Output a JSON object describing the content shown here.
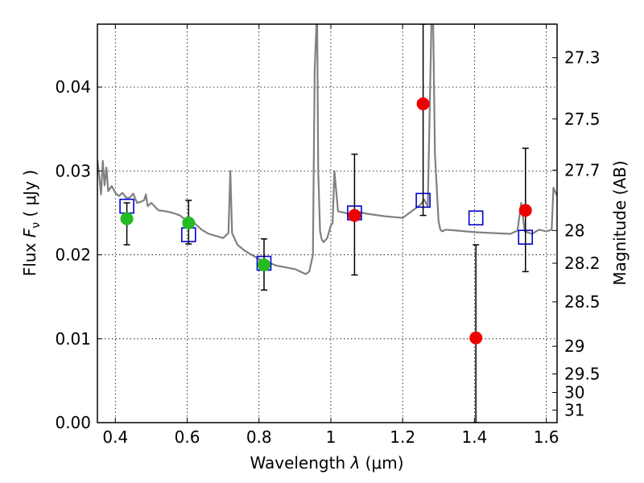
{
  "chart_data": {
    "type": "scatter",
    "title": "",
    "xlabel": "Wavelength  λ (μm)",
    "ylabel": "Flux  F_ν  ( μJy )",
    "ylabel_parts": {
      "prefix": "Flux  ",
      "symbol": "F",
      "sub": "ν",
      "suffix": "  ( μJy )"
    },
    "xlabel_parts": {
      "prefix": "Wavelength  ",
      "symbol": "λ",
      "suffix": " (μm)"
    },
    "y2label": "Magnitude (AB)",
    "xlim": [
      0.35,
      1.63
    ],
    "ylim": [
      0.0,
      0.0475
    ],
    "grid": true,
    "x_ticks": [
      0.4,
      0.6,
      0.8,
      1.0,
      1.2,
      1.4,
      1.6
    ],
    "x_tick_labels": [
      "0.4",
      "0.6",
      "0.8",
      "1",
      "1.2",
      "1.4",
      "1.6"
    ],
    "y_ticks": [
      0.0,
      0.01,
      0.02,
      0.03,
      0.04
    ],
    "y_tick_labels": [
      "0.00",
      "0.01",
      "0.02",
      "0.03",
      "0.04"
    ],
    "magnitude_ticks": [
      {
        "label": "27.3",
        "flux": 0.0435
      },
      {
        "label": "27.5",
        "flux": 0.0362
      },
      {
        "label": "27.7",
        "flux": 0.0301
      },
      {
        "label": "28",
        "flux": 0.0229
      },
      {
        "label": "28.2",
        "flux": 0.019
      },
      {
        "label": "28.5",
        "flux": 0.0144
      },
      {
        "label": "29",
        "flux": 0.0091
      },
      {
        "label": "29.5",
        "flux": 0.0058
      },
      {
        "label": "30",
        "flux": 0.0036
      },
      {
        "label": "31",
        "flux": 0.0015
      }
    ],
    "colors": {
      "model": "#808080",
      "observed_optical": "#22bb22",
      "observed_nir": "#ee0000",
      "model_photometry": "#0000cc",
      "error_bar": "#000000"
    },
    "series": [
      {
        "kind": "model-spectrum",
        "x": [
          0.35,
          0.355,
          0.36,
          0.365,
          0.37,
          0.375,
          0.38,
          0.39,
          0.4,
          0.41,
          0.42,
          0.43,
          0.44,
          0.45,
          0.46,
          0.47,
          0.48,
          0.485,
          0.49,
          0.5,
          0.52,
          0.54,
          0.56,
          0.58,
          0.6,
          0.62,
          0.64,
          0.66,
          0.7,
          0.715,
          0.72,
          0.725,
          0.74,
          0.76,
          0.8,
          0.85,
          0.9,
          0.93,
          0.94,
          0.95,
          0.955,
          0.96,
          0.962,
          0.965,
          0.97,
          0.975,
          0.98,
          0.99,
          1.0,
          1.005,
          1.01,
          1.02,
          1.05,
          1.08,
          1.1,
          1.15,
          1.2,
          1.25,
          1.26,
          1.27,
          1.28,
          1.285,
          1.29,
          1.3,
          1.305,
          1.31,
          1.32,
          1.35,
          1.4,
          1.45,
          1.5,
          1.52,
          1.53,
          1.54,
          1.56,
          1.58,
          1.6,
          1.615,
          1.62,
          1.63
        ],
        "y": [
          0.0313,
          0.0295,
          0.0272,
          0.0312,
          0.0283,
          0.0304,
          0.0276,
          0.0282,
          0.0274,
          0.027,
          0.0274,
          0.0268,
          0.0268,
          0.0273,
          0.0262,
          0.0263,
          0.0265,
          0.0272,
          0.0258,
          0.0262,
          0.0253,
          0.0252,
          0.025,
          0.0247,
          0.024,
          0.0238,
          0.023,
          0.0225,
          0.022,
          0.0226,
          0.03,
          0.0226,
          0.0212,
          0.0205,
          0.0195,
          0.0187,
          0.0183,
          0.0177,
          0.018,
          0.02,
          0.042,
          0.0475,
          0.0475,
          0.03,
          0.0228,
          0.0218,
          0.0215,
          0.022,
          0.0235,
          0.0238,
          0.03,
          0.0252,
          0.0249,
          0.0251,
          0.0249,
          0.0246,
          0.0244,
          0.026,
          0.0266,
          0.0258,
          0.0475,
          0.0475,
          0.032,
          0.024,
          0.023,
          0.0228,
          0.023,
          0.0229,
          0.0227,
          0.0226,
          0.0225,
          0.0229,
          0.0262,
          0.0228,
          0.0225,
          0.023,
          0.0228,
          0.023,
          0.028,
          0.027
        ]
      },
      {
        "kind": "model-photometry",
        "x": [
          0.432,
          0.604,
          0.814,
          1.066,
          1.257,
          1.404,
          1.542
        ],
        "y": [
          0.0258,
          0.0224,
          0.019,
          0.025,
          0.0265,
          0.0244,
          0.0221
        ]
      },
      {
        "kind": "observed-optical",
        "x": [
          0.432,
          0.604,
          0.814
        ],
        "y": [
          0.0243,
          0.0238,
          0.0188
        ],
        "err_low": [
          0.0031,
          0.0025,
          0.003
        ],
        "err_high": [
          0.0019,
          0.0027,
          0.0031
        ]
      },
      {
        "kind": "observed-nir",
        "x": [
          1.066,
          1.257,
          1.404,
          1.542
        ],
        "y": [
          0.0247,
          0.038,
          0.0101,
          0.0253
        ],
        "err_low": [
          0.0071,
          0.0133,
          0.0101,
          0.0073
        ],
        "err_high": [
          0.0073,
          0.0095,
          0.0111,
          0.0074
        ]
      }
    ]
  }
}
